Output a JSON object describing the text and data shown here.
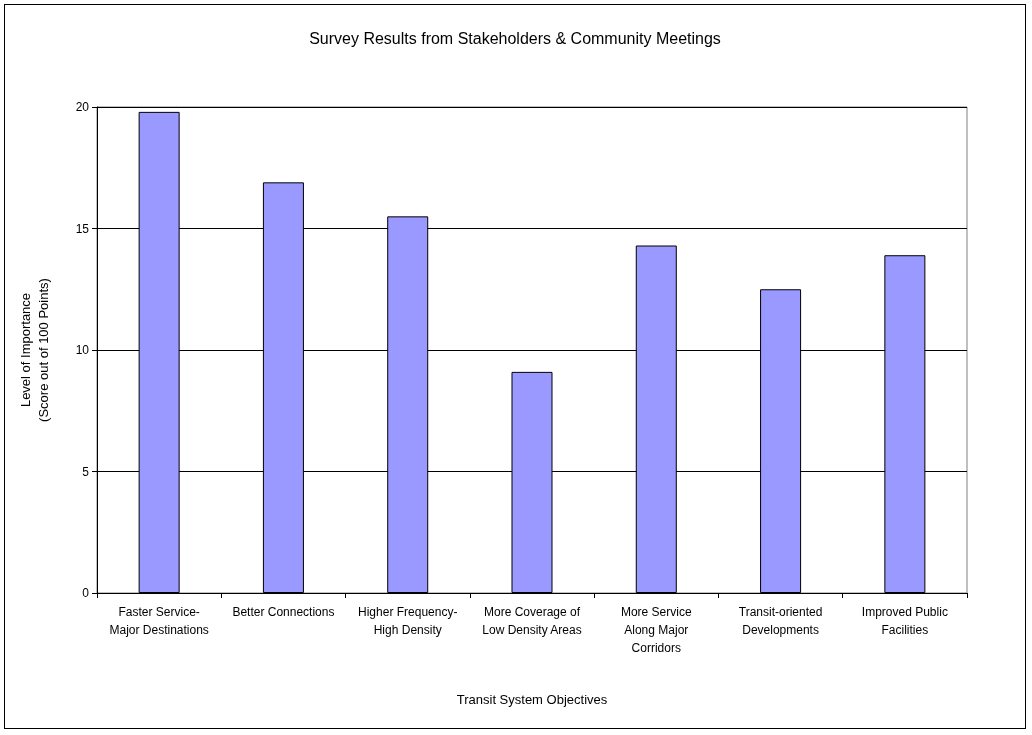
{
  "chart_data": {
    "type": "bar",
    "title": "Survey Results from Stakeholders & Community Meetings",
    "xlabel": "Transit System Objectives",
    "ylabel": "Level of Importance\n(Score out of 100 Points)",
    "categories": [
      "Faster Service-\nMajor Destinations",
      "Better Connections",
      "Higher Frequency-\nHigh Density",
      "More Coverage of\nLow Density Areas",
      "More Service\nAlong Major\nCorridors",
      "Transit-oriented\nDevelopments",
      "Improved Public\nFacilities"
    ],
    "values": [
      19.8,
      16.9,
      15.5,
      9.1,
      14.3,
      12.5,
      13.9
    ],
    "color": "#9999ff",
    "ylim": [
      0,
      20
    ],
    "yticks": [
      0,
      5,
      10,
      15,
      20
    ],
    "grid": "y"
  }
}
